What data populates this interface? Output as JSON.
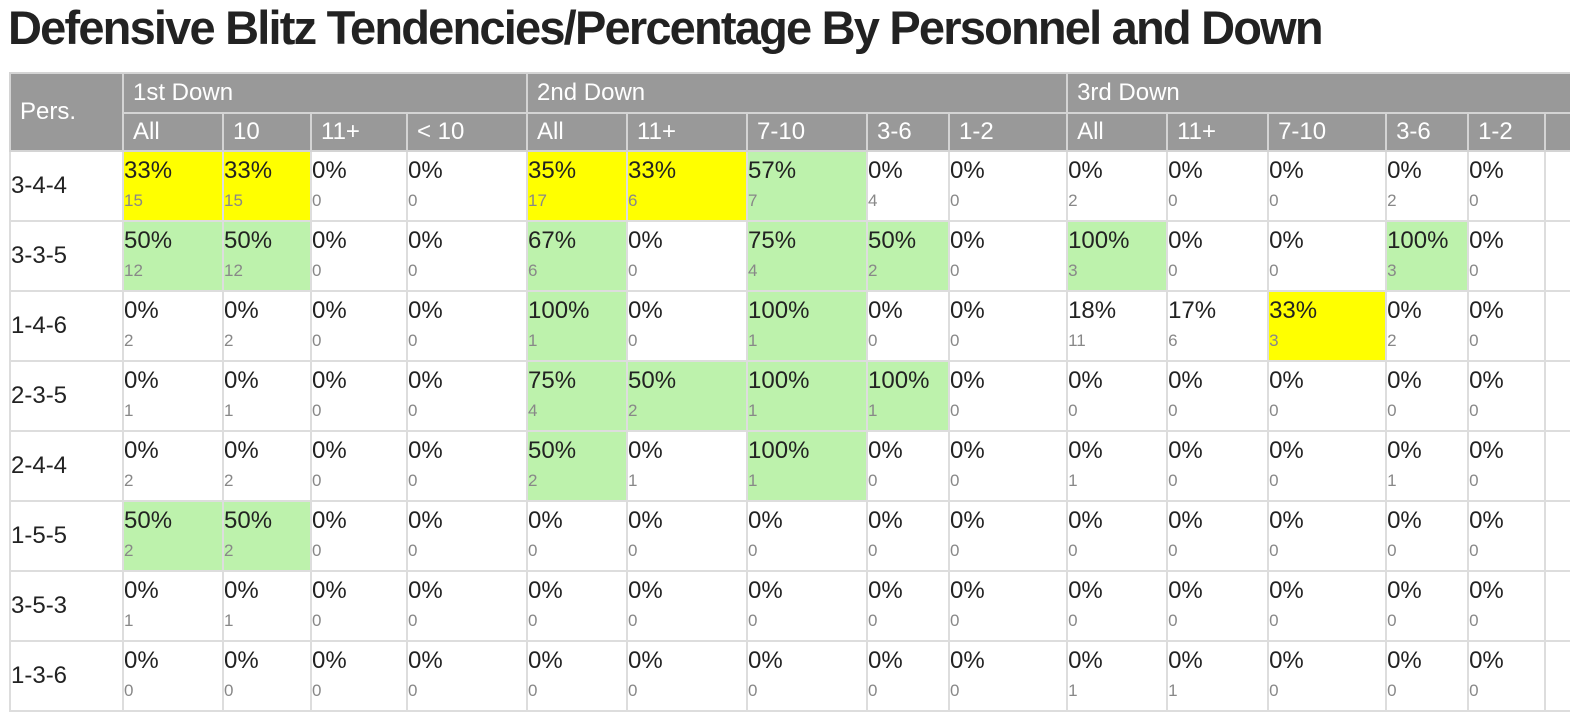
{
  "title": "Defensive Blitz Tendencies/Percentage By Personnel and Down",
  "colors": {
    "header_bg": "#999999",
    "highlight_yellow": "#ffff00",
    "highlight_green": "#bdf2ac"
  },
  "table": {
    "pers_header": "Pers.",
    "groups": [
      {
        "label": "1st Down",
        "span": 4
      },
      {
        "label": "2nd Down",
        "span": 5
      },
      {
        "label": "3rd Down",
        "span": 5
      }
    ],
    "subheaders": [
      "All",
      "10",
      "11+",
      "< 10",
      "All",
      "11+",
      "7-10",
      "3-6",
      "1-2",
      "All",
      "11+",
      "7-10",
      "3-6",
      "1-2"
    ],
    "rows": [
      {
        "pers": "3-4-4",
        "cells": [
          {
            "pct": "33%",
            "count": "15",
            "hl": "yellow"
          },
          {
            "pct": "33%",
            "count": "15",
            "hl": "yellow"
          },
          {
            "pct": "0%",
            "count": "0",
            "hl": ""
          },
          {
            "pct": "0%",
            "count": "0",
            "hl": ""
          },
          {
            "pct": "35%",
            "count": "17",
            "hl": "yellow"
          },
          {
            "pct": "33%",
            "count": "6",
            "hl": "yellow"
          },
          {
            "pct": "57%",
            "count": "7",
            "hl": "green"
          },
          {
            "pct": "0%",
            "count": "4",
            "hl": ""
          },
          {
            "pct": "0%",
            "count": "0",
            "hl": ""
          },
          {
            "pct": "0%",
            "count": "2",
            "hl": ""
          },
          {
            "pct": "0%",
            "count": "0",
            "hl": ""
          },
          {
            "pct": "0%",
            "count": "0",
            "hl": ""
          },
          {
            "pct": "0%",
            "count": "2",
            "hl": ""
          },
          {
            "pct": "0%",
            "count": "0",
            "hl": ""
          }
        ]
      },
      {
        "pers": "3-3-5",
        "cells": [
          {
            "pct": "50%",
            "count": "12",
            "hl": "green"
          },
          {
            "pct": "50%",
            "count": "12",
            "hl": "green"
          },
          {
            "pct": "0%",
            "count": "0",
            "hl": ""
          },
          {
            "pct": "0%",
            "count": "0",
            "hl": ""
          },
          {
            "pct": "67%",
            "count": "6",
            "hl": "green"
          },
          {
            "pct": "0%",
            "count": "0",
            "hl": ""
          },
          {
            "pct": "75%",
            "count": "4",
            "hl": "green"
          },
          {
            "pct": "50%",
            "count": "2",
            "hl": "green"
          },
          {
            "pct": "0%",
            "count": "0",
            "hl": ""
          },
          {
            "pct": "100%",
            "count": "3",
            "hl": "green"
          },
          {
            "pct": "0%",
            "count": "0",
            "hl": ""
          },
          {
            "pct": "0%",
            "count": "0",
            "hl": ""
          },
          {
            "pct": "100%",
            "count": "3",
            "hl": "green"
          },
          {
            "pct": "0%",
            "count": "0",
            "hl": ""
          }
        ]
      },
      {
        "pers": "1-4-6",
        "cells": [
          {
            "pct": "0%",
            "count": "2",
            "hl": ""
          },
          {
            "pct": "0%",
            "count": "2",
            "hl": ""
          },
          {
            "pct": "0%",
            "count": "0",
            "hl": ""
          },
          {
            "pct": "0%",
            "count": "0",
            "hl": ""
          },
          {
            "pct": "100%",
            "count": "1",
            "hl": "green"
          },
          {
            "pct": "0%",
            "count": "0",
            "hl": ""
          },
          {
            "pct": "100%",
            "count": "1",
            "hl": "green"
          },
          {
            "pct": "0%",
            "count": "0",
            "hl": ""
          },
          {
            "pct": "0%",
            "count": "0",
            "hl": ""
          },
          {
            "pct": "18%",
            "count": "11",
            "hl": ""
          },
          {
            "pct": "17%",
            "count": "6",
            "hl": ""
          },
          {
            "pct": "33%",
            "count": "3",
            "hl": "yellow"
          },
          {
            "pct": "0%",
            "count": "2",
            "hl": ""
          },
          {
            "pct": "0%",
            "count": "0",
            "hl": ""
          }
        ]
      },
      {
        "pers": "2-3-5",
        "cells": [
          {
            "pct": "0%",
            "count": "1",
            "hl": ""
          },
          {
            "pct": "0%",
            "count": "1",
            "hl": ""
          },
          {
            "pct": "0%",
            "count": "0",
            "hl": ""
          },
          {
            "pct": "0%",
            "count": "0",
            "hl": ""
          },
          {
            "pct": "75%",
            "count": "4",
            "hl": "green"
          },
          {
            "pct": "50%",
            "count": "2",
            "hl": "green"
          },
          {
            "pct": "100%",
            "count": "1",
            "hl": "green"
          },
          {
            "pct": "100%",
            "count": "1",
            "hl": "green"
          },
          {
            "pct": "0%",
            "count": "0",
            "hl": ""
          },
          {
            "pct": "0%",
            "count": "0",
            "hl": ""
          },
          {
            "pct": "0%",
            "count": "0",
            "hl": ""
          },
          {
            "pct": "0%",
            "count": "0",
            "hl": ""
          },
          {
            "pct": "0%",
            "count": "0",
            "hl": ""
          },
          {
            "pct": "0%",
            "count": "0",
            "hl": ""
          }
        ]
      },
      {
        "pers": "2-4-4",
        "cells": [
          {
            "pct": "0%",
            "count": "2",
            "hl": ""
          },
          {
            "pct": "0%",
            "count": "2",
            "hl": ""
          },
          {
            "pct": "0%",
            "count": "0",
            "hl": ""
          },
          {
            "pct": "0%",
            "count": "0",
            "hl": ""
          },
          {
            "pct": "50%",
            "count": "2",
            "hl": "green"
          },
          {
            "pct": "0%",
            "count": "1",
            "hl": ""
          },
          {
            "pct": "100%",
            "count": "1",
            "hl": "green"
          },
          {
            "pct": "0%",
            "count": "0",
            "hl": ""
          },
          {
            "pct": "0%",
            "count": "0",
            "hl": ""
          },
          {
            "pct": "0%",
            "count": "1",
            "hl": ""
          },
          {
            "pct": "0%",
            "count": "0",
            "hl": ""
          },
          {
            "pct": "0%",
            "count": "0",
            "hl": ""
          },
          {
            "pct": "0%",
            "count": "1",
            "hl": ""
          },
          {
            "pct": "0%",
            "count": "0",
            "hl": ""
          }
        ]
      },
      {
        "pers": "1-5-5",
        "cells": [
          {
            "pct": "50%",
            "count": "2",
            "hl": "green"
          },
          {
            "pct": "50%",
            "count": "2",
            "hl": "green"
          },
          {
            "pct": "0%",
            "count": "0",
            "hl": ""
          },
          {
            "pct": "0%",
            "count": "0",
            "hl": ""
          },
          {
            "pct": "0%",
            "count": "0",
            "hl": ""
          },
          {
            "pct": "0%",
            "count": "0",
            "hl": ""
          },
          {
            "pct": "0%",
            "count": "0",
            "hl": ""
          },
          {
            "pct": "0%",
            "count": "0",
            "hl": ""
          },
          {
            "pct": "0%",
            "count": "0",
            "hl": ""
          },
          {
            "pct": "0%",
            "count": "0",
            "hl": ""
          },
          {
            "pct": "0%",
            "count": "0",
            "hl": ""
          },
          {
            "pct": "0%",
            "count": "0",
            "hl": ""
          },
          {
            "pct": "0%",
            "count": "0",
            "hl": ""
          },
          {
            "pct": "0%",
            "count": "0",
            "hl": ""
          }
        ]
      },
      {
        "pers": "3-5-3",
        "cells": [
          {
            "pct": "0%",
            "count": "1",
            "hl": ""
          },
          {
            "pct": "0%",
            "count": "1",
            "hl": ""
          },
          {
            "pct": "0%",
            "count": "0",
            "hl": ""
          },
          {
            "pct": "0%",
            "count": "0",
            "hl": ""
          },
          {
            "pct": "0%",
            "count": "0",
            "hl": ""
          },
          {
            "pct": "0%",
            "count": "0",
            "hl": ""
          },
          {
            "pct": "0%",
            "count": "0",
            "hl": ""
          },
          {
            "pct": "0%",
            "count": "0",
            "hl": ""
          },
          {
            "pct": "0%",
            "count": "0",
            "hl": ""
          },
          {
            "pct": "0%",
            "count": "0",
            "hl": ""
          },
          {
            "pct": "0%",
            "count": "0",
            "hl": ""
          },
          {
            "pct": "0%",
            "count": "0",
            "hl": ""
          },
          {
            "pct": "0%",
            "count": "0",
            "hl": ""
          },
          {
            "pct": "0%",
            "count": "0",
            "hl": ""
          }
        ]
      },
      {
        "pers": "1-3-6",
        "cells": [
          {
            "pct": "0%",
            "count": "0",
            "hl": ""
          },
          {
            "pct": "0%",
            "count": "0",
            "hl": ""
          },
          {
            "pct": "0%",
            "count": "0",
            "hl": ""
          },
          {
            "pct": "0%",
            "count": "0",
            "hl": ""
          },
          {
            "pct": "0%",
            "count": "0",
            "hl": ""
          },
          {
            "pct": "0%",
            "count": "0",
            "hl": ""
          },
          {
            "pct": "0%",
            "count": "0",
            "hl": ""
          },
          {
            "pct": "0%",
            "count": "0",
            "hl": ""
          },
          {
            "pct": "0%",
            "count": "0",
            "hl": ""
          },
          {
            "pct": "0%",
            "count": "1",
            "hl": ""
          },
          {
            "pct": "0%",
            "count": "1",
            "hl": ""
          },
          {
            "pct": "0%",
            "count": "0",
            "hl": ""
          },
          {
            "pct": "0%",
            "count": "0",
            "hl": ""
          },
          {
            "pct": "0%",
            "count": "0",
            "hl": ""
          }
        ]
      }
    ]
  }
}
